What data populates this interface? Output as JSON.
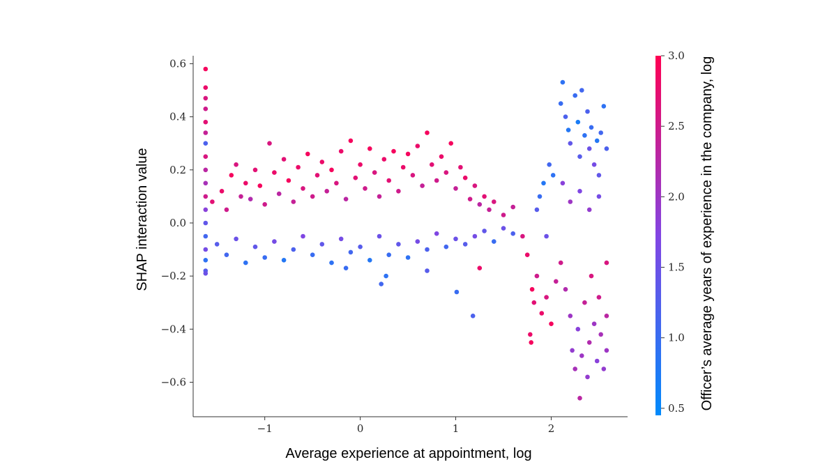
{
  "chart_data": {
    "type": "scatter",
    "xlabel": "Average experience at appointment, log",
    "ylabel": "SHAP interaction value",
    "colorbar_label": "Officer’s average years of experience in the company, log",
    "xlim": [
      -1.75,
      2.8
    ],
    "ylim": [
      -0.73,
      0.63
    ],
    "xticks": [
      -1,
      0,
      1,
      2
    ],
    "xtick_labels": [
      "−1",
      "0",
      "1",
      "2"
    ],
    "yticks": [
      -0.6,
      -0.4,
      -0.2,
      0.0,
      0.2,
      0.4,
      0.6
    ],
    "ytick_labels": [
      "−0.6",
      "−0.4",
      "−0.2",
      "0.0",
      "0.2",
      "0.4",
      "0.6"
    ],
    "color_range": [
      0.45,
      3.0
    ],
    "cbar_ticks": [
      0.5,
      1.0,
      1.5,
      2.0,
      2.5,
      3.0
    ],
    "cbar_tick_labels": [
      "0.5",
      "1.0",
      "1.5",
      "2.0",
      "2.5",
      "3.0"
    ],
    "colors": {
      "low": "#008afb",
      "high": "#ff0052"
    },
    "grid": false,
    "points": [
      [
        -1.62,
        0.58,
        2.9
      ],
      [
        -1.62,
        0.51,
        2.8
      ],
      [
        -1.62,
        0.47,
        2.6
      ],
      [
        -1.62,
        0.43,
        2.5
      ],
      [
        -1.62,
        0.38,
        2.7
      ],
      [
        -1.62,
        0.34,
        2.4
      ],
      [
        -1.62,
        0.3,
        1.2
      ],
      [
        -1.62,
        0.25,
        2.6
      ],
      [
        -1.62,
        0.2,
        2.3
      ],
      [
        -1.62,
        0.15,
        2.1
      ],
      [
        -1.62,
        0.1,
        2.5
      ],
      [
        -1.62,
        0.05,
        1.8
      ],
      [
        -1.62,
        0.0,
        1.4
      ],
      [
        -1.62,
        -0.05,
        1.1
      ],
      [
        -1.62,
        -0.1,
        1.6
      ],
      [
        -1.62,
        -0.14,
        0.9
      ],
      [
        -1.62,
        -0.18,
        1.3
      ],
      [
        -1.62,
        -0.19,
        1.5
      ],
      [
        -1.55,
        0.08,
        2.7
      ],
      [
        -1.45,
        0.12,
        2.8
      ],
      [
        -1.4,
        0.05,
        2.5
      ],
      [
        -1.35,
        0.18,
        2.9
      ],
      [
        -1.3,
        0.22,
        2.6
      ],
      [
        -1.25,
        0.1,
        2.4
      ],
      [
        -1.2,
        0.15,
        2.8
      ],
      [
        -1.15,
        0.09,
        2.2
      ],
      [
        -1.1,
        0.2,
        2.7
      ],
      [
        -1.05,
        0.14,
        2.9
      ],
      [
        -1.0,
        0.07,
        2.5
      ],
      [
        -0.95,
        0.3,
        2.6
      ],
      [
        -0.9,
        0.19,
        2.8
      ],
      [
        -0.85,
        0.11,
        2.3
      ],
      [
        -0.8,
        0.24,
        2.7
      ],
      [
        -0.75,
        0.16,
        2.9
      ],
      [
        -0.7,
        0.08,
        2.4
      ],
      [
        -0.65,
        0.21,
        2.8
      ],
      [
        -0.6,
        0.13,
        2.6
      ],
      [
        -0.55,
        0.26,
        2.9
      ],
      [
        -0.5,
        0.1,
        2.5
      ],
      [
        -0.45,
        0.18,
        2.7
      ],
      [
        -0.4,
        0.23,
        2.8
      ],
      [
        -0.35,
        0.12,
        2.4
      ],
      [
        -0.3,
        0.2,
        2.9
      ],
      [
        -0.25,
        0.15,
        2.6
      ],
      [
        -0.2,
        0.27,
        2.8
      ],
      [
        -0.15,
        0.09,
        2.3
      ],
      [
        -0.1,
        0.31,
        2.9
      ],
      [
        -0.05,
        0.17,
        2.7
      ],
      [
        0.0,
        0.22,
        2.8
      ],
      [
        0.05,
        0.13,
        2.5
      ],
      [
        0.1,
        0.28,
        2.9
      ],
      [
        0.15,
        0.19,
        2.6
      ],
      [
        0.2,
        0.1,
        2.4
      ],
      [
        0.25,
        0.24,
        2.8
      ],
      [
        0.3,
        0.16,
        2.7
      ],
      [
        0.35,
        0.27,
        2.9
      ],
      [
        0.4,
        0.12,
        2.5
      ],
      [
        0.45,
        0.21,
        2.8
      ],
      [
        0.5,
        0.26,
        2.9
      ],
      [
        0.55,
        0.18,
        2.6
      ],
      [
        0.6,
        0.29,
        2.8
      ],
      [
        0.65,
        0.14,
        2.4
      ],
      [
        0.7,
        0.34,
        2.9
      ],
      [
        0.75,
        0.22,
        2.7
      ],
      [
        0.8,
        0.16,
        2.5
      ],
      [
        0.85,
        0.25,
        2.8
      ],
      [
        0.9,
        0.19,
        2.6
      ],
      [
        0.95,
        0.3,
        2.9
      ],
      [
        1.0,
        0.13,
        2.4
      ],
      [
        1.05,
        0.21,
        2.7
      ],
      [
        1.1,
        0.17,
        2.8
      ],
      [
        1.15,
        0.09,
        2.5
      ],
      [
        1.2,
        0.14,
        2.6
      ],
      [
        1.25,
        0.07,
        2.3
      ],
      [
        1.3,
        0.1,
        2.7
      ],
      [
        1.35,
        0.05,
        2.4
      ],
      [
        1.4,
        0.08,
        2.6
      ],
      [
        1.5,
        0.03,
        2.5
      ],
      [
        1.6,
        0.06,
        2.4
      ],
      [
        -1.5,
        -0.08,
        1.3
      ],
      [
        -1.4,
        -0.12,
        1.1
      ],
      [
        -1.3,
        -0.06,
        1.5
      ],
      [
        -1.2,
        -0.15,
        0.9
      ],
      [
        -1.1,
        -0.09,
        1.4
      ],
      [
        -1.0,
        -0.13,
        1.0
      ],
      [
        -0.9,
        -0.07,
        1.6
      ],
      [
        -0.8,
        -0.14,
        0.8
      ],
      [
        -0.7,
        -0.1,
        1.2
      ],
      [
        -0.6,
        -0.05,
        1.7
      ],
      [
        -0.5,
        -0.12,
        1.0
      ],
      [
        -0.4,
        -0.08,
        1.4
      ],
      [
        -0.3,
        -0.15,
        0.9
      ],
      [
        -0.2,
        -0.06,
        1.6
      ],
      [
        -0.1,
        -0.11,
        1.1
      ],
      [
        0.0,
        -0.09,
        1.3
      ],
      [
        0.1,
        -0.14,
        0.8
      ],
      [
        0.2,
        -0.05,
        1.5
      ],
      [
        0.3,
        -0.12,
        1.0
      ],
      [
        0.4,
        -0.08,
        1.4
      ],
      [
        0.5,
        -0.13,
        0.9
      ],
      [
        0.6,
        -0.07,
        1.6
      ],
      [
        0.7,
        -0.1,
        1.2
      ],
      [
        0.8,
        -0.04,
        1.7
      ],
      [
        0.9,
        -0.09,
        1.1
      ],
      [
        1.0,
        -0.06,
        1.5
      ],
      [
        1.1,
        -0.08,
        1.3
      ],
      [
        1.2,
        -0.05,
        1.6
      ],
      [
        1.3,
        -0.03,
        1.4
      ],
      [
        1.4,
        -0.07,
        1.0
      ],
      [
        1.5,
        -0.02,
        1.5
      ],
      [
        1.6,
        -0.04,
        1.2
      ],
      [
        0.22,
        -0.23,
        1.1
      ],
      [
        0.27,
        -0.2,
        0.9
      ],
      [
        1.01,
        -0.26,
        1.0
      ],
      [
        1.18,
        -0.35,
        1.2
      ],
      [
        1.25,
        -0.17,
        2.8
      ],
      [
        0.7,
        -0.18,
        1.3
      ],
      [
        -0.15,
        -0.17,
        1.0
      ],
      [
        1.7,
        -0.05,
        2.6
      ],
      [
        1.75,
        -0.12,
        2.8
      ],
      [
        1.8,
        -0.25,
        2.9
      ],
      [
        1.82,
        -0.3,
        2.7
      ],
      [
        1.78,
        -0.42,
        2.8
      ],
      [
        1.79,
        -0.45,
        2.9
      ],
      [
        1.85,
        -0.2,
        2.5
      ],
      [
        1.9,
        -0.34,
        2.8
      ],
      [
        1.95,
        -0.28,
        2.6
      ],
      [
        2.0,
        -0.38,
        2.9
      ],
      [
        2.05,
        -0.22,
        2.4
      ],
      [
        1.88,
        0.1,
        1.0
      ],
      [
        1.92,
        0.15,
        0.8
      ],
      [
        1.98,
        0.22,
        1.1
      ],
      [
        2.02,
        0.18,
        0.9
      ],
      [
        1.85,
        0.05,
        1.3
      ],
      [
        1.95,
        -0.05,
        1.5
      ],
      [
        2.1,
        0.45,
        1.0
      ],
      [
        2.12,
        0.53,
        0.9
      ],
      [
        2.15,
        0.4,
        1.2
      ],
      [
        2.18,
        0.35,
        0.8
      ],
      [
        2.2,
        0.3,
        1.4
      ],
      [
        2.25,
        0.48,
        1.0
      ],
      [
        2.28,
        0.38,
        0.7
      ],
      [
        2.3,
        0.25,
        1.3
      ],
      [
        2.32,
        0.5,
        1.1
      ],
      [
        2.35,
        0.33,
        0.9
      ],
      [
        2.38,
        0.42,
        1.2
      ],
      [
        2.4,
        0.28,
        1.5
      ],
      [
        2.42,
        0.36,
        1.0
      ],
      [
        2.45,
        0.22,
        1.6
      ],
      [
        2.48,
        0.31,
        0.8
      ],
      [
        2.5,
        0.18,
        1.4
      ],
      [
        2.52,
        0.34,
        1.1
      ],
      [
        2.55,
        0.44,
        0.9
      ],
      [
        2.58,
        0.28,
        1.2
      ],
      [
        2.12,
        0.15,
        1.8
      ],
      [
        2.2,
        0.08,
        2.0
      ],
      [
        2.3,
        0.12,
        1.7
      ],
      [
        2.4,
        0.05,
        1.9
      ],
      [
        2.5,
        0.1,
        1.6
      ],
      [
        2.1,
        -0.15,
        2.5
      ],
      [
        2.15,
        -0.25,
        2.2
      ],
      [
        2.2,
        -0.35,
        2.0
      ],
      [
        2.22,
        -0.48,
        1.9
      ],
      [
        2.25,
        -0.55,
        2.1
      ],
      [
        2.28,
        -0.4,
        1.8
      ],
      [
        2.3,
        -0.66,
        2.3
      ],
      [
        2.32,
        -0.5,
        2.0
      ],
      [
        2.35,
        -0.3,
        2.4
      ],
      [
        2.38,
        -0.58,
        1.9
      ],
      [
        2.4,
        -0.45,
        2.2
      ],
      [
        2.42,
        -0.2,
        2.6
      ],
      [
        2.45,
        -0.38,
        2.0
      ],
      [
        2.48,
        -0.52,
        1.8
      ],
      [
        2.5,
        -0.28,
        2.5
      ],
      [
        2.52,
        -0.42,
        2.1
      ],
      [
        2.55,
        -0.55,
        1.9
      ],
      [
        2.58,
        -0.35,
        2.3
      ],
      [
        2.58,
        -0.15,
        2.6
      ],
      [
        2.58,
        -0.48,
        2.0
      ]
    ]
  }
}
